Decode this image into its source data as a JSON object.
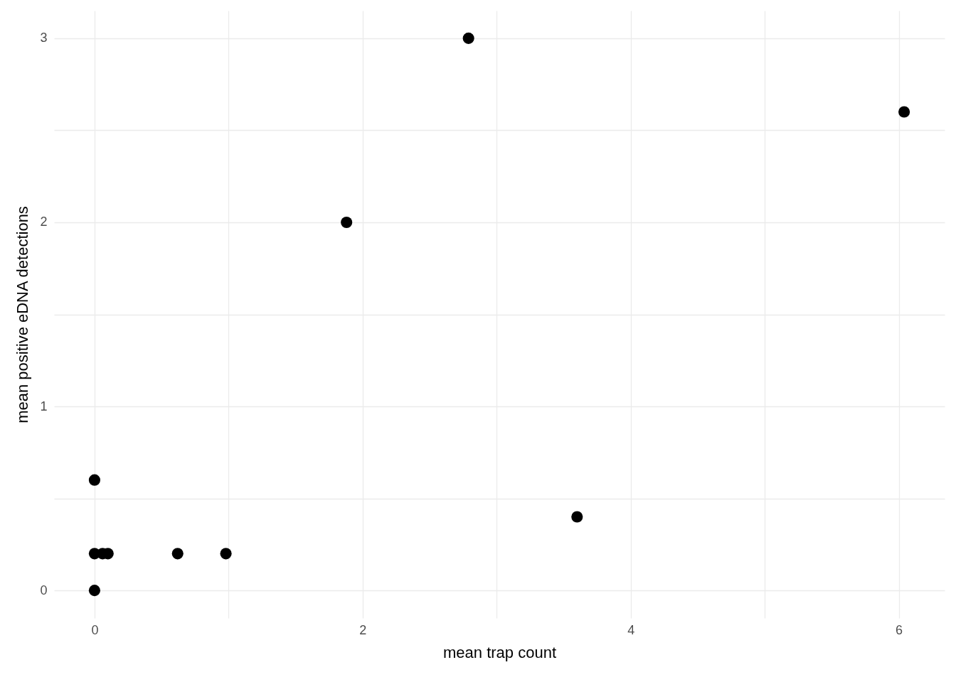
{
  "chart_data": {
    "type": "scatter",
    "xlabel": "mean trap count",
    "ylabel": "mean positive eDNA detections",
    "x": [
      0,
      0,
      0,
      0.06,
      0.1,
      0.62,
      0.98,
      1.88,
      2.79,
      3.6,
      6.04
    ],
    "series": [
      {
        "color": "#000000",
        "values": [
          0,
          0.6,
          0.2,
          0.2,
          0.2,
          0.2,
          0.2,
          2,
          3,
          0.4,
          2.6
        ]
      }
    ],
    "xlim": [
      -0.302,
      6.342
    ],
    "ylim": [
      -0.15,
      3.15
    ],
    "xticks": [
      0,
      {
        "value": 1,
        "label": null
      },
      2,
      {
        "value": 3,
        "label": null
      },
      4,
      {
        "value": 5,
        "label": null
      },
      6
    ],
    "yticks": [
      0,
      {
        "value": 0.5,
        "label": null
      },
      1,
      {
        "value": 1.5,
        "label": null
      },
      2,
      {
        "value": 2.5,
        "label": null
      },
      3
    ],
    "grid": true,
    "marker": "circle"
  }
}
